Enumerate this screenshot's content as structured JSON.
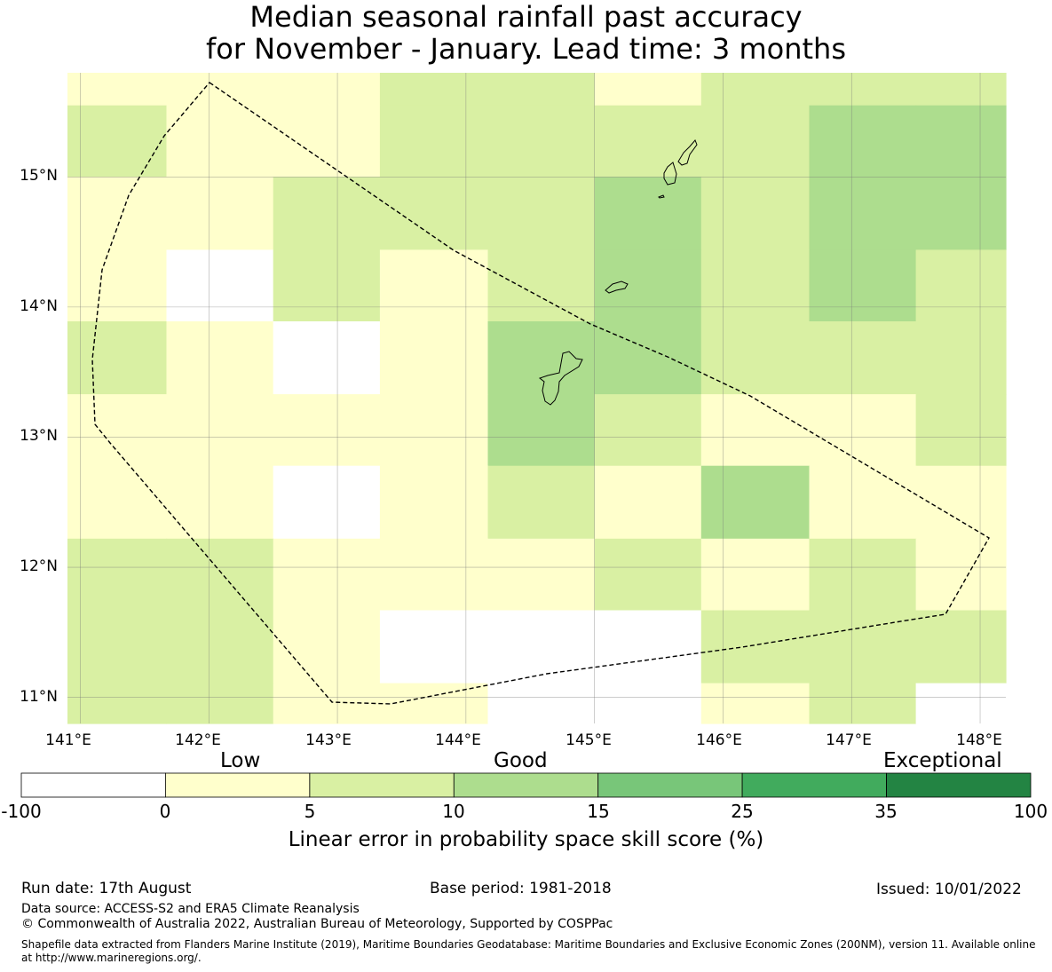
{
  "title": {
    "line1": "Median seasonal rainfall past accuracy",
    "line2": "for November - January. Lead time: 3 months"
  },
  "map": {
    "lat_labels": [
      "15°N",
      "14°N",
      "13°N",
      "12°N",
      "11°N"
    ],
    "lon_labels": [
      "141°E",
      "142°E",
      "143°E",
      "144°E",
      "145°E",
      "146°E",
      "147°E",
      "148°E"
    ],
    "lon_range": [
      140.9,
      148.2
    ],
    "lat_range": [
      10.8,
      15.8
    ],
    "grid_columns_lon_edges": [
      140.9,
      141.67,
      142.5,
      143.33,
      144.17,
      145.0,
      145.83,
      146.67,
      147.5,
      148.2
    ],
    "grid_rows_lat_edges": [
      15.8,
      15.55,
      15.0,
      14.44,
      13.89,
      13.33,
      12.78,
      12.22,
      11.67,
      11.11,
      10.8
    ],
    "skill_grid": [
      [
        1,
        1,
        1,
        2,
        2,
        1,
        2,
        2,
        2
      ],
      [
        2,
        1,
        1,
        2,
        2,
        2,
        2,
        3,
        3
      ],
      [
        1,
        1,
        2,
        2,
        2,
        3,
        2,
        3,
        3
      ],
      [
        1,
        0,
        2,
        1,
        2,
        3,
        2,
        3,
        2
      ],
      [
        2,
        1,
        0,
        1,
        3,
        3,
        2,
        2,
        2
      ],
      [
        1,
        1,
        1,
        1,
        3,
        2,
        1,
        1,
        2
      ],
      [
        1,
        1,
        0,
        1,
        2,
        1,
        3,
        1,
        1
      ],
      [
        2,
        2,
        1,
        1,
        1,
        2,
        1,
        2,
        1
      ],
      [
        2,
        2,
        1,
        0,
        0,
        0,
        2,
        2,
        2
      ],
      [
        2,
        2,
        1,
        1,
        0,
        0,
        1,
        2,
        0
      ]
    ]
  },
  "colorbar": {
    "category_labels": {
      "low": "Low",
      "good": "Good",
      "exceptional": "Exceptional"
    },
    "ticks": [
      "-100",
      "0",
      "5",
      "10",
      "15",
      "25",
      "35",
      "100"
    ],
    "colors": [
      "#ffffff",
      "#ffffcc",
      "#d9f0a3",
      "#addd8e",
      "#78c679",
      "#41ab5d",
      "#238443"
    ],
    "title": "Linear error in probability space skill score (%)"
  },
  "footer": {
    "run_date": "Run date: 17th August",
    "base_period": "Base period: 1981-2018",
    "issued": "Issued: 10/01/2022",
    "data_source": "Data source: ACCESS-S2 and ERA5 Climate Reanalysis",
    "copyright": "© Commonwealth of Australia 2022, Australian Bureau of Meteorology, Supported by COSPPac",
    "shapefile": "Shapefile data extracted from Flanders Marine Institute (2019), Maritime Boundaries Geodatabase: Maritime Boundaries and Exclusive Economic Zones (200NM), version 11. Available online at http://www.marineregions.org/."
  }
}
